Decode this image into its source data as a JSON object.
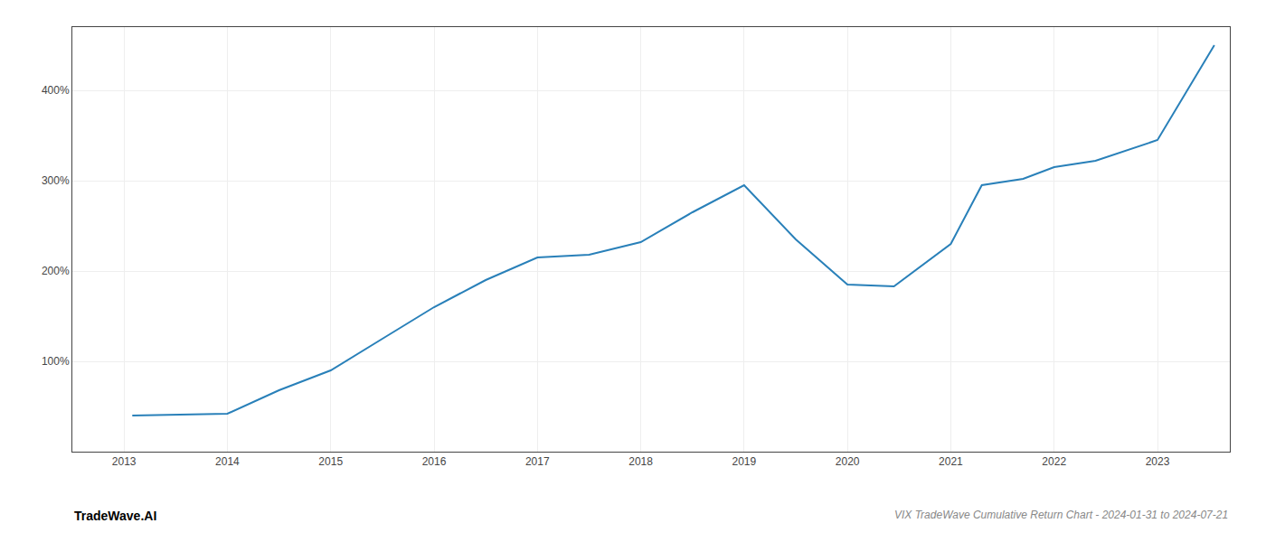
{
  "chart_data": {
    "type": "line",
    "title": "VIX TradeWave Cumulative Return Chart - 2024-01-31 to 2024-07-21",
    "annotations": [
      "TradeWave.AI"
    ],
    "x": [
      2013.08,
      2014.0,
      2014.5,
      2015.0,
      2015.5,
      2016.0,
      2016.5,
      2017.0,
      2017.5,
      2018.0,
      2018.5,
      2019.0,
      2019.5,
      2020.0,
      2020.45,
      2021.0,
      2021.3,
      2021.7,
      2022.0,
      2022.4,
      2023.0,
      2023.55
    ],
    "values": [
      40,
      42,
      68,
      90,
      125,
      160,
      190,
      215,
      218,
      232,
      265,
      295,
      235,
      185,
      183,
      230,
      295,
      302,
      315,
      322,
      345,
      450
    ],
    "color": "#2980b9",
    "xlim": [
      2012.5,
      2023.7
    ],
    "xticks": [
      2013,
      2014,
      2015,
      2016,
      2017,
      2018,
      2019,
      2020,
      2021,
      2022,
      2023
    ],
    "ylim": [
      0,
      470
    ],
    "yticks": [
      {
        "value": 100,
        "label": "100%"
      },
      {
        "value": 200,
        "label": "200%"
      },
      {
        "value": 300,
        "label": "300%"
      },
      {
        "value": 400,
        "label": "400%"
      }
    ],
    "grid": true
  }
}
